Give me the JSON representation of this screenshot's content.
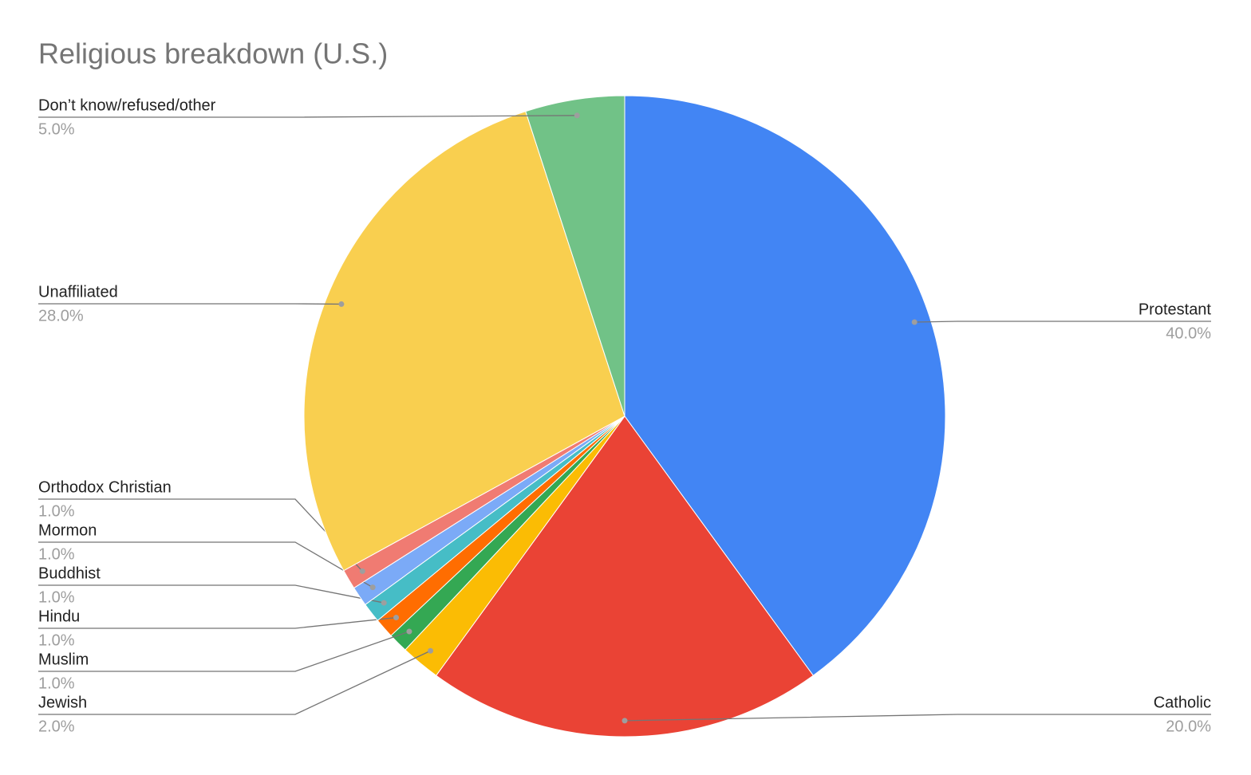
{
  "chart_data": {
    "type": "pie",
    "title": "Religious breakdown (U.S.)",
    "categories": [
      "Protestant",
      "Catholic",
      "Jewish",
      "Muslim",
      "Hindu",
      "Buddhist",
      "Mormon",
      "Orthodox Christian",
      "Unaffiliated",
      "Don’t know/refused/other"
    ],
    "values": [
      40,
      20,
      2,
      1,
      1,
      1,
      1,
      1,
      28,
      5
    ],
    "value_labels": [
      "40.0%",
      "20.0%",
      "2.0%",
      "1.0%",
      "1.0%",
      "1.0%",
      "1.0%",
      "1.0%",
      "28.0%",
      "5.0%"
    ],
    "colors": [
      "#4285f4",
      "#ea4335",
      "#fbbc04",
      "#34a853",
      "#ff6d01",
      "#46bdc6",
      "#7baaf7",
      "#f07b72",
      "#f9cf4f",
      "#71c287"
    ]
  }
}
